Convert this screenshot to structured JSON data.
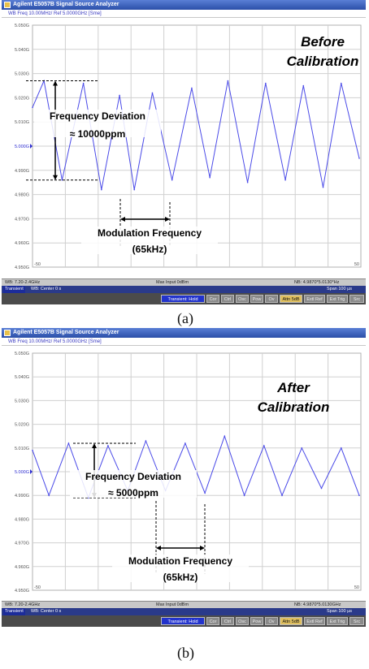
{
  "panels": [
    {
      "caption": "(a)",
      "window_title": "Agilent E5057B Signal Source Analyzer",
      "trace_info": "WB Freq 10.00MHz/ Ref 5.0000GHz [Sme]",
      "status_left": "WB: 7.20-2.4GHz",
      "status_mid": "Max Input 0dBm",
      "status_right": "NB: 4.9870*5.0130*Hz",
      "nav_left": "Transient",
      "nav_center": "WB: Center 0 s",
      "nav_right": "Span 100 µs",
      "buttons": [
        "Transient: Hold",
        "Cor",
        "Ctrl",
        "Osc",
        "Pow",
        "Ov",
        "Attn 5dB",
        "Extl Ref",
        "Ext Trig",
        "Src"
      ],
      "x_left_label": "-50",
      "x_right_label": "50",
      "annotation_title_line1": "Before",
      "annotation_title_line2": "Calibration",
      "deviation_label": "Frequency Deviation",
      "deviation_value": "≈ 10000ppm",
      "modulation_label": "Modulation Frequency",
      "modulation_value": "(65kHz)"
    },
    {
      "caption": "(b)",
      "window_title": "Agilent E5057B Signal Source Analyzer",
      "trace_info": "WB Freq 10.00MHz/ Ref 5.0000GHz [Sme]",
      "status_left": "WB: 7.20-2.4GHz",
      "status_mid": "Max Input 0dBm",
      "status_right": "NB: 4.9870*5.0130GHz",
      "nav_left": "Transient",
      "nav_center": "WB: Center 0 s",
      "nav_right": "Span 100 µs",
      "buttons": [
        "Transient: Hold",
        "Cor",
        "Ctrl",
        "Osc",
        "Pow",
        "Ov",
        "Attn 5dB",
        "Extl Ref",
        "Ext Trig",
        "Src"
      ],
      "x_left_label": "-50",
      "x_right_label": "50",
      "annotation_title_line1": "After",
      "annotation_title_line2": "Calibration",
      "deviation_label": "Frequency Deviation",
      "deviation_value": "≈ 5000ppm",
      "modulation_label": "Modulation Frequency",
      "modulation_value": "(65kHz)"
    }
  ],
  "colors": {
    "trace": "#4a4ae8",
    "grid": "#d0d0d0",
    "title_bar": "#2b4fa8"
  },
  "chart_data": [
    {
      "type": "line",
      "ylabel_ticks": [
        "5.050G",
        "5.040G",
        "5.030G",
        "5.020G",
        "5.010G",
        "5.000G",
        "4.990G",
        "4.980G",
        "4.970G",
        "4.960G",
        "4.950G"
      ],
      "ylim": [
        4.95,
        5.05
      ],
      "xlim": [
        -50,
        50
      ],
      "grid": true,
      "series": [
        {
          "x": [
            -50,
            -46.5,
            -41,
            -34.5,
            -29,
            -23.5,
            -19,
            -13.5,
            -7.5,
            -1.5,
            4,
            9.5,
            15.5,
            21,
            27,
            32.5,
            38.5,
            44,
            49.5
          ],
          "values": [
            5.016,
            5.027,
            4.986,
            5.026,
            4.982,
            5.021,
            4.982,
            5.022,
            4.986,
            5.024,
            4.987,
            5.027,
            4.985,
            5.026,
            4.986,
            5.025,
            4.983,
            5.026,
            4.995
          ]
        }
      ]
    },
    {
      "type": "line",
      "ylabel_ticks": [
        "5.050G",
        "5.040G",
        "5.030G",
        "5.020G",
        "5.010G",
        "5.000G",
        "4.990G",
        "4.980G",
        "4.970G",
        "4.960G",
        "4.950G"
      ],
      "ylim": [
        4.95,
        5.05
      ],
      "xlim": [
        -50,
        50
      ],
      "grid": true,
      "series": [
        {
          "x": [
            -50,
            -45,
            -39,
            -33,
            -27,
            -21,
            -15.5,
            -9.5,
            -3.5,
            2.5,
            8.5,
            14.5,
            20.5,
            26,
            32,
            38,
            44,
            49.5
          ],
          "values": [
            5.009,
            4.99,
            5.012,
            4.989,
            5.011,
            4.992,
            5.013,
            4.992,
            5.012,
            4.991,
            5.015,
            4.99,
            5.011,
            4.99,
            5.01,
            4.993,
            5.01,
            4.99
          ]
        }
      ]
    }
  ]
}
